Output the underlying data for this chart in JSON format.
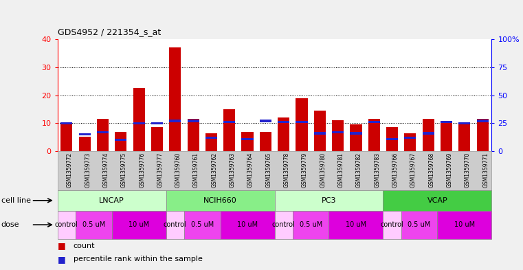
{
  "title": "GDS4952 / 221354_s_at",
  "samples": [
    "GSM1359772",
    "GSM1359773",
    "GSM1359774",
    "GSM1359775",
    "GSM1359776",
    "GSM1359777",
    "GSM1359760",
    "GSM1359761",
    "GSM1359762",
    "GSM1359763",
    "GSM1359764",
    "GSM1359765",
    "GSM1359778",
    "GSM1359779",
    "GSM1359780",
    "GSM1359781",
    "GSM1359782",
    "GSM1359783",
    "GSM1359766",
    "GSM1359767",
    "GSM1359768",
    "GSM1359769",
    "GSM1359770",
    "GSM1359771"
  ],
  "count_values": [
    9.5,
    5.2,
    11.5,
    7.0,
    22.5,
    8.5,
    37.0,
    11.5,
    6.5,
    15.0,
    7.0,
    7.0,
    12.0,
    19.0,
    14.5,
    11.0,
    9.5,
    11.5,
    8.5,
    6.5,
    11.5,
    10.0,
    9.5,
    11.5
  ],
  "percentile_values": [
    25,
    15,
    17,
    10,
    25,
    25,
    27,
    27,
    12,
    26,
    11,
    27,
    26,
    26,
    16,
    17,
    16,
    26,
    11,
    12,
    16,
    26,
    25,
    27
  ],
  "bar_color": "#cc0000",
  "percentile_color": "#2222cc",
  "background_color": "#f0f0f0",
  "plot_bg_color": "#ffffff",
  "ylim_left": [
    0,
    40
  ],
  "ylim_right": [
    0,
    100
  ],
  "yticks_left": [
    0,
    10,
    20,
    30,
    40
  ],
  "yticks_right": [
    0,
    25,
    50,
    75,
    100
  ],
  "ytick_labels_right": [
    "0",
    "25",
    "50",
    "75",
    "100%"
  ],
  "cell_line_groups": [
    {
      "label": "LNCAP",
      "start": 0,
      "end": 5,
      "color": "#ccffcc"
    },
    {
      "label": "NCIH660",
      "start": 6,
      "end": 11,
      "color": "#88ee88"
    },
    {
      "label": "PC3",
      "start": 12,
      "end": 17,
      "color": "#ccffcc"
    },
    {
      "label": "VCAP",
      "start": 18,
      "end": 23,
      "color": "#44cc44"
    }
  ],
  "dose_groups": [
    {
      "label": "control",
      "start": 0,
      "end": 0,
      "color": "#ffccff"
    },
    {
      "label": "0.5 uM",
      "start": 1,
      "end": 2,
      "color": "#ee44ee"
    },
    {
      "label": "10 uM",
      "start": 3,
      "end": 5,
      "color": "#dd00dd"
    },
    {
      "label": "control",
      "start": 6,
      "end": 6,
      "color": "#ffccff"
    },
    {
      "label": "0.5 uM",
      "start": 7,
      "end": 8,
      "color": "#ee44ee"
    },
    {
      "label": "10 uM",
      "start": 9,
      "end": 11,
      "color": "#dd00dd"
    },
    {
      "label": "control",
      "start": 12,
      "end": 12,
      "color": "#ffccff"
    },
    {
      "label": "0.5 uM",
      "start": 13,
      "end": 14,
      "color": "#ee44ee"
    },
    {
      "label": "10 uM",
      "start": 15,
      "end": 17,
      "color": "#dd00dd"
    },
    {
      "label": "control",
      "start": 18,
      "end": 18,
      "color": "#ffccff"
    },
    {
      "label": "0.5 uM",
      "start": 19,
      "end": 20,
      "color": "#ee44ee"
    },
    {
      "label": "10 uM",
      "start": 21,
      "end": 23,
      "color": "#dd00dd"
    }
  ],
  "xtick_bg_color": "#cccccc",
  "row_label_fontsize": 8,
  "tick_fontsize": 5.5,
  "bar_fontsize": 7,
  "cell_line_fontsize": 8
}
